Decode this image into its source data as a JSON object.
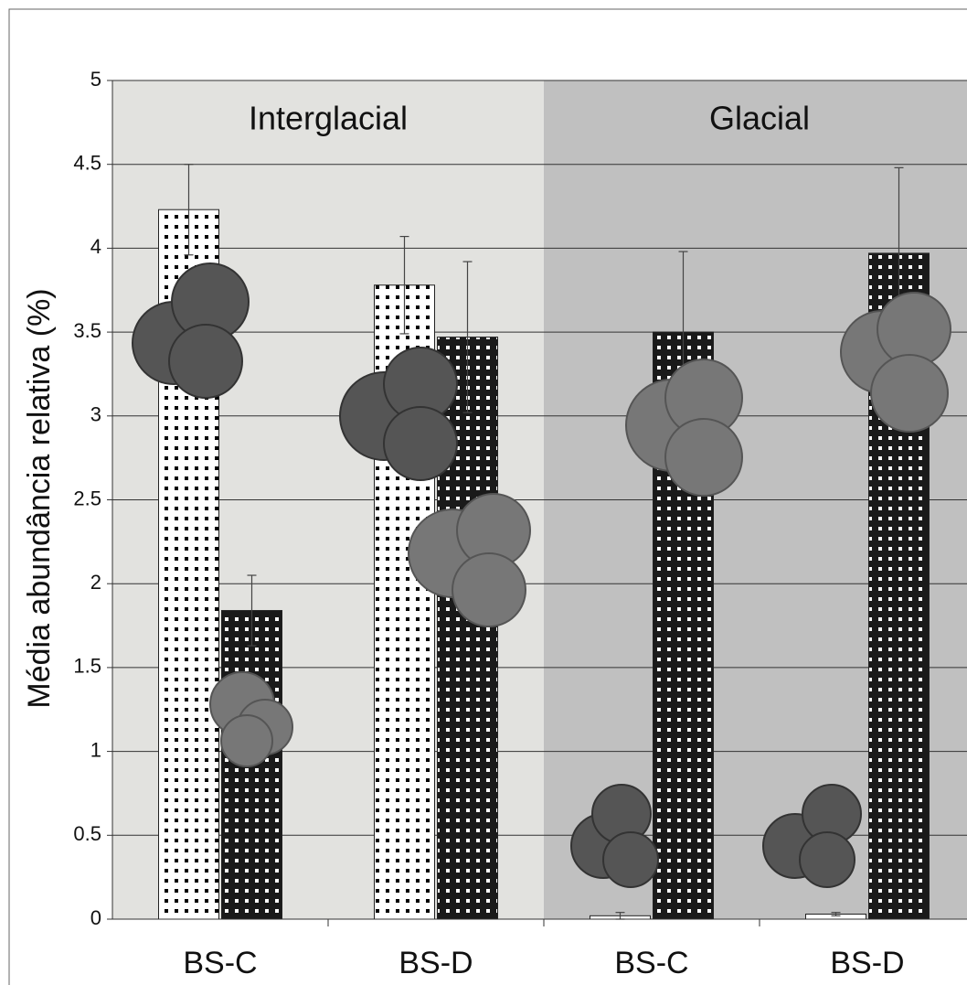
{
  "chart_data": {
    "type": "bar",
    "y_label": "Média abundância relativa (%)",
    "categories": [
      "BS-C",
      "BS-D",
      "BS-C",
      "BS-D"
    ],
    "groups": [
      {
        "label": "Interglacial",
        "color": "#e2e2df"
      },
      {
        "label": "Glacial",
        "color": "#c0c0c0"
      }
    ],
    "series": [
      {
        "color": "#ffffff",
        "values": [
          4.23,
          3.78,
          0.02,
          0.03
        ],
        "errors": [
          0.27,
          0.29,
          0.02,
          0.01
        ]
      },
      {
        "color": "#1a1a1a",
        "values": [
          1.84,
          3.47,
          3.5,
          3.97
        ],
        "errors": [
          0.21,
          0.45,
          0.48,
          0.51
        ]
      }
    ],
    "ylim": [
      0,
      5
    ],
    "yticks": [
      0,
      0.5,
      1,
      1.5,
      2,
      2.5,
      3,
      3.5,
      4,
      4.5,
      5
    ],
    "grid": true
  }
}
